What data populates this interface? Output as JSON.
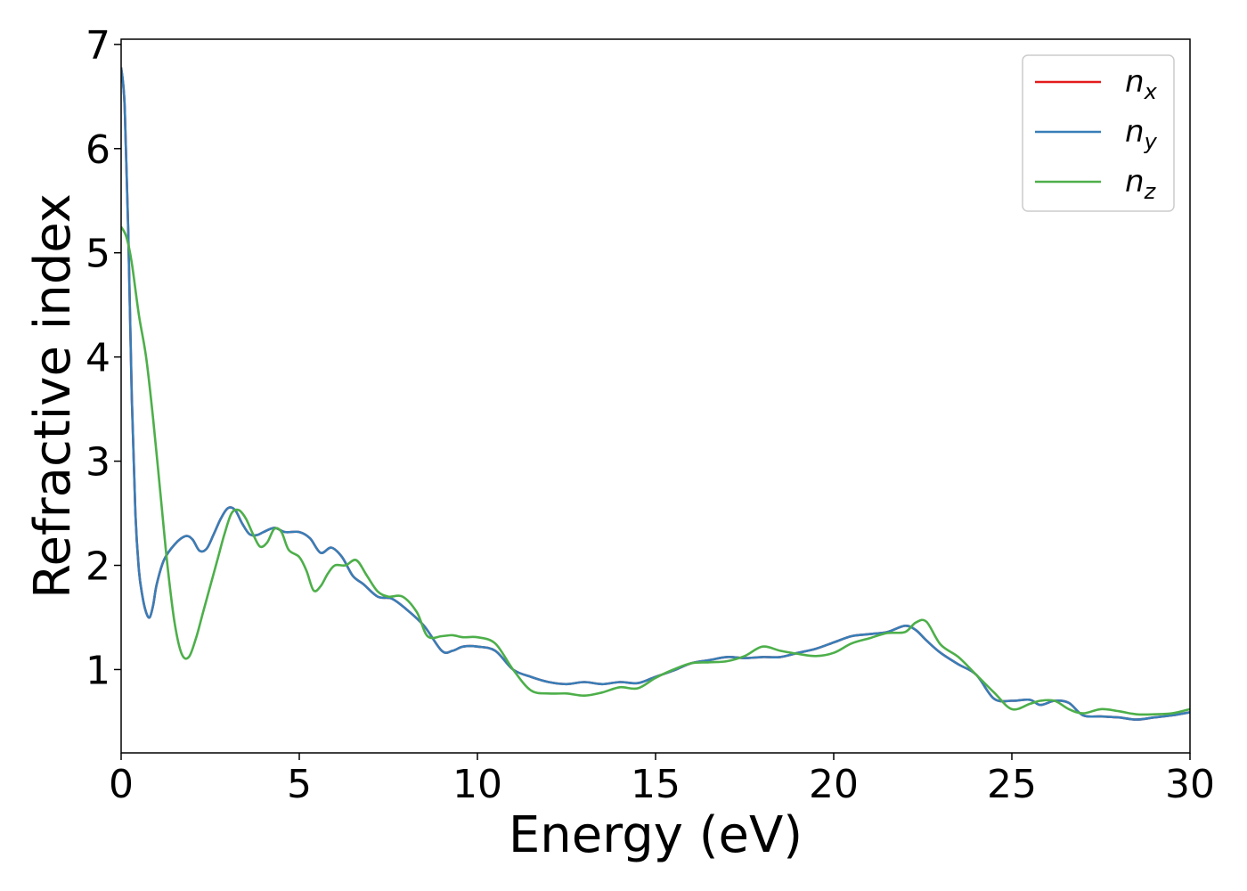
{
  "chart_data": {
    "type": "line",
    "title": "",
    "xlabel": "Energy (eV)",
    "ylabel": "Refractive index",
    "xlim": [
      0,
      30
    ],
    "ylim": [
      0.2,
      7.05
    ],
    "xticks": [
      0,
      5,
      10,
      15,
      20,
      25,
      30
    ],
    "xtick_labels": [
      "0",
      "5",
      "10",
      "15",
      "20",
      "25",
      "30"
    ],
    "yticks": [
      1,
      2,
      3,
      4,
      5,
      6,
      7
    ],
    "ytick_labels": [
      "1",
      "2",
      "3",
      "4",
      "5",
      "6",
      "7"
    ],
    "grid": false,
    "legend_position": "top-right",
    "series": [
      {
        "name": "n",
        "sub": "x",
        "color": "#e41a1c",
        "x": [
          0,
          0.1,
          0.2,
          0.3,
          0.4,
          0.5,
          0.6,
          0.7,
          0.8,
          0.9,
          1.0,
          1.2,
          1.5,
          1.8,
          2.0,
          2.2,
          2.4,
          2.6,
          2.8,
          3.0,
          3.2,
          3.4,
          3.6,
          3.8,
          4.0,
          4.3,
          4.6,
          5.0,
          5.3,
          5.6,
          5.9,
          6.2,
          6.5,
          6.8,
          7.2,
          7.6,
          8.0,
          8.5,
          9.0,
          9.3,
          9.6,
          10.0,
          10.5,
          11.0,
          11.5,
          12.0,
          12.5,
          13.0,
          13.5,
          14.0,
          14.5,
          15.0,
          15.5,
          16.0,
          16.5,
          17.0,
          17.5,
          18.0,
          18.5,
          19.0,
          19.5,
          20.0,
          20.5,
          21.0,
          21.5,
          22.0,
          22.3,
          22.6,
          23.0,
          23.5,
          24.0,
          24.5,
          25.0,
          25.5,
          25.8,
          26.2,
          26.6,
          27.0,
          27.5,
          28.0,
          28.5,
          29.0,
          29.5,
          30.0
        ],
        "y": [
          6.78,
          6.4,
          5.2,
          3.6,
          2.5,
          1.95,
          1.7,
          1.55,
          1.5,
          1.62,
          1.82,
          2.05,
          2.2,
          2.28,
          2.25,
          2.14,
          2.16,
          2.3,
          2.45,
          2.55,
          2.53,
          2.4,
          2.3,
          2.29,
          2.32,
          2.36,
          2.32,
          2.32,
          2.26,
          2.12,
          2.17,
          2.08,
          1.9,
          1.82,
          1.7,
          1.68,
          1.58,
          1.42,
          1.18,
          1.18,
          1.22,
          1.22,
          1.18,
          1.0,
          0.93,
          0.88,
          0.86,
          0.88,
          0.86,
          0.88,
          0.87,
          0.93,
          0.99,
          1.06,
          1.09,
          1.12,
          1.11,
          1.12,
          1.12,
          1.16,
          1.2,
          1.26,
          1.32,
          1.34,
          1.36,
          1.42,
          1.38,
          1.28,
          1.16,
          1.05,
          0.95,
          0.72,
          0.7,
          0.71,
          0.66,
          0.7,
          0.68,
          0.56,
          0.55,
          0.54,
          0.52,
          0.54,
          0.56,
          0.59
        ]
      },
      {
        "name": "n",
        "sub": "y",
        "color": "#377eb8",
        "x": [
          0,
          0.1,
          0.2,
          0.3,
          0.4,
          0.5,
          0.6,
          0.7,
          0.8,
          0.9,
          1.0,
          1.2,
          1.5,
          1.8,
          2.0,
          2.2,
          2.4,
          2.6,
          2.8,
          3.0,
          3.2,
          3.4,
          3.6,
          3.8,
          4.0,
          4.3,
          4.6,
          5.0,
          5.3,
          5.6,
          5.9,
          6.2,
          6.5,
          6.8,
          7.2,
          7.6,
          8.0,
          8.5,
          9.0,
          9.3,
          9.6,
          10.0,
          10.5,
          11.0,
          11.5,
          12.0,
          12.5,
          13.0,
          13.5,
          14.0,
          14.5,
          15.0,
          15.5,
          16.0,
          16.5,
          17.0,
          17.5,
          18.0,
          18.5,
          19.0,
          19.5,
          20.0,
          20.5,
          21.0,
          21.5,
          22.0,
          22.3,
          22.6,
          23.0,
          23.5,
          24.0,
          24.5,
          25.0,
          25.5,
          25.8,
          26.2,
          26.6,
          27.0,
          27.5,
          28.0,
          28.5,
          29.0,
          29.5,
          30.0
        ],
        "y": [
          6.78,
          6.4,
          5.2,
          3.6,
          2.5,
          1.95,
          1.7,
          1.55,
          1.5,
          1.62,
          1.82,
          2.05,
          2.2,
          2.28,
          2.25,
          2.14,
          2.16,
          2.3,
          2.45,
          2.55,
          2.53,
          2.4,
          2.3,
          2.29,
          2.32,
          2.36,
          2.32,
          2.32,
          2.26,
          2.12,
          2.17,
          2.08,
          1.9,
          1.82,
          1.7,
          1.68,
          1.58,
          1.42,
          1.18,
          1.18,
          1.22,
          1.22,
          1.18,
          1.0,
          0.93,
          0.88,
          0.86,
          0.88,
          0.86,
          0.88,
          0.87,
          0.93,
          0.99,
          1.06,
          1.09,
          1.12,
          1.11,
          1.12,
          1.12,
          1.16,
          1.2,
          1.26,
          1.32,
          1.34,
          1.36,
          1.42,
          1.38,
          1.28,
          1.16,
          1.05,
          0.95,
          0.72,
          0.7,
          0.71,
          0.66,
          0.7,
          0.68,
          0.56,
          0.55,
          0.54,
          0.52,
          0.54,
          0.56,
          0.59
        ]
      },
      {
        "name": "n",
        "sub": "z",
        "color": "#4daf4a",
        "x": [
          0,
          0.15,
          0.3,
          0.5,
          0.7,
          0.9,
          1.1,
          1.3,
          1.5,
          1.7,
          1.9,
          2.1,
          2.3,
          2.5,
          2.7,
          2.9,
          3.1,
          3.3,
          3.5,
          3.7,
          3.9,
          4.1,
          4.3,
          4.5,
          4.7,
          5.0,
          5.2,
          5.4,
          5.6,
          5.8,
          6.0,
          6.3,
          6.6,
          6.9,
          7.2,
          7.5,
          7.9,
          8.3,
          8.6,
          9.0,
          9.3,
          9.6,
          10.0,
          10.5,
          11.0,
          11.5,
          12.0,
          12.5,
          13.0,
          13.5,
          14.0,
          14.5,
          15.0,
          15.5,
          16.0,
          16.5,
          17.0,
          17.5,
          18.0,
          18.5,
          19.0,
          19.5,
          20.0,
          20.5,
          21.0,
          21.5,
          22.0,
          22.3,
          22.6,
          23.0,
          23.5,
          24.0,
          24.5,
          25.0,
          25.5,
          25.8,
          26.2,
          26.6,
          27.0,
          27.5,
          28.0,
          28.5,
          29.0,
          29.5,
          30.0
        ],
        "y": [
          5.25,
          5.15,
          4.9,
          4.4,
          4.0,
          3.4,
          2.7,
          2.0,
          1.45,
          1.15,
          1.12,
          1.3,
          1.55,
          1.8,
          2.05,
          2.3,
          2.5,
          2.53,
          2.45,
          2.3,
          2.18,
          2.22,
          2.35,
          2.32,
          2.15,
          2.08,
          1.95,
          1.76,
          1.8,
          1.92,
          2.0,
          2.0,
          2.05,
          1.9,
          1.75,
          1.7,
          1.7,
          1.55,
          1.32,
          1.32,
          1.33,
          1.31,
          1.31,
          1.25,
          1.0,
          0.8,
          0.77,
          0.77,
          0.75,
          0.78,
          0.83,
          0.82,
          0.92,
          1.0,
          1.06,
          1.07,
          1.08,
          1.13,
          1.22,
          1.18,
          1.15,
          1.13,
          1.16,
          1.25,
          1.3,
          1.35,
          1.36,
          1.45,
          1.46,
          1.24,
          1.12,
          0.95,
          0.78,
          0.62,
          0.67,
          0.7,
          0.7,
          0.62,
          0.58,
          0.62,
          0.6,
          0.57,
          0.57,
          0.58,
          0.62
        ]
      }
    ]
  }
}
